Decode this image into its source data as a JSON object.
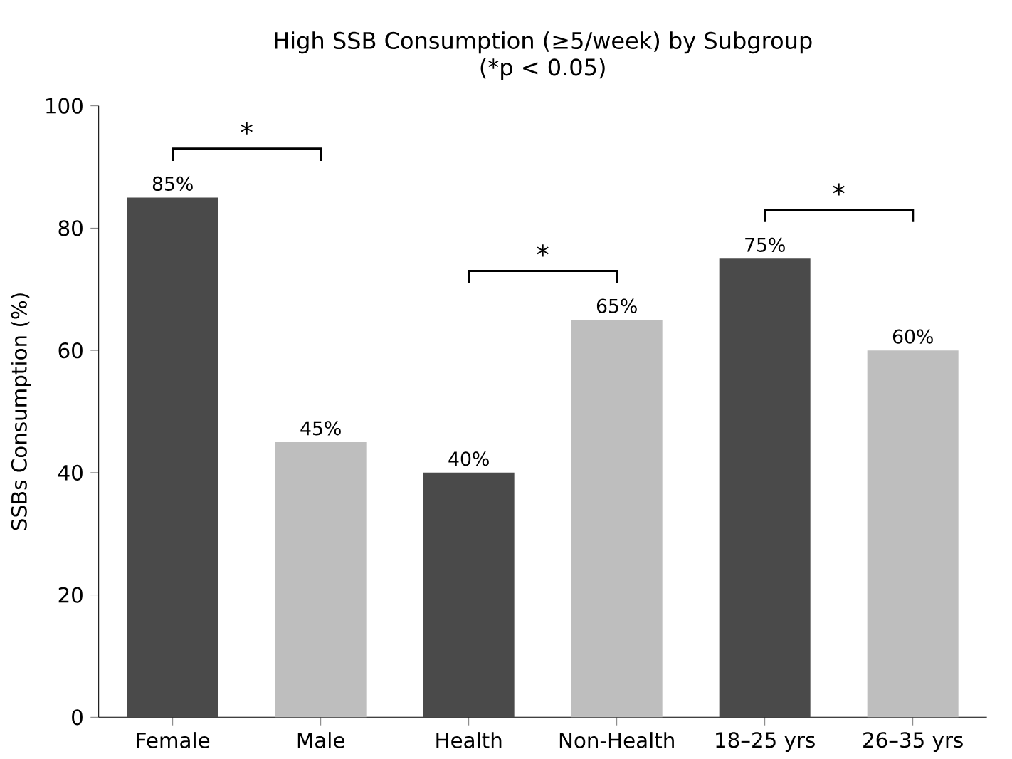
{
  "chart_data": {
    "type": "bar",
    "title": "High SSB Consumption (≥5/week) by Subgroup",
    "subtitle": "(*p < 0.05)",
    "ylabel": "SSBs Consumption (%)",
    "categories": [
      "Female",
      "Male",
      "Health",
      "Non-Health",
      "18–25 yrs",
      "26–35 yrs"
    ],
    "values": [
      85,
      45,
      40,
      65,
      75,
      60
    ],
    "colors": [
      "#4a4a4a",
      "#bebebe",
      "#4a4a4a",
      "#bebebe",
      "#4a4a4a",
      "#bebebe"
    ],
    "value_labels": [
      "85%",
      "45%",
      "40%",
      "65%",
      "75%",
      "60%"
    ],
    "annotations": [
      "*",
      "*",
      "*"
    ],
    "ylim": [
      0,
      100
    ],
    "yticks": [
      0,
      20,
      40,
      60,
      80,
      100
    ],
    "grid": false
  }
}
